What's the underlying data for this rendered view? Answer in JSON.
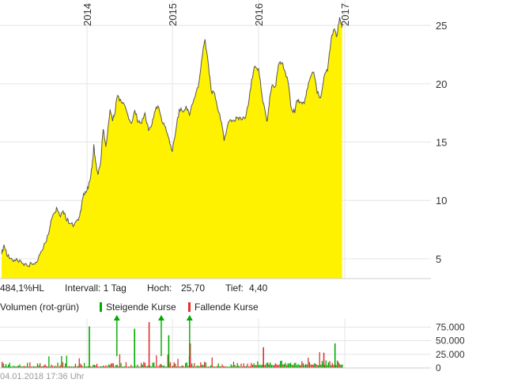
{
  "chart_data": [
    {
      "type": "area",
      "subtype": "price",
      "x_ticks": [
        "2014",
        "2015",
        "2016",
        "2017"
      ],
      "y_ticks": [
        "25",
        "20",
        "15",
        "10",
        "5"
      ],
      "ylim": [
        3.3,
        26.5
      ],
      "grid": true,
      "fill_color": "#fff200",
      "line_color": "#555555",
      "points": [
        [
          2013.0,
          5.4
        ],
        [
          2013.03,
          6.2
        ],
        [
          2013.06,
          5.3
        ],
        [
          2013.1,
          5.0
        ],
        [
          2013.15,
          4.9
        ],
        [
          2013.2,
          4.7
        ],
        [
          2013.25,
          4.6
        ],
        [
          2013.3,
          4.4
        ],
        [
          2013.35,
          4.6
        ],
        [
          2013.4,
          4.7
        ],
        [
          2013.45,
          5.4
        ],
        [
          2013.5,
          6.3
        ],
        [
          2013.55,
          7.1
        ],
        [
          2013.58,
          8.3
        ],
        [
          2013.62,
          8.9
        ],
        [
          2013.65,
          9.3
        ],
        [
          2013.68,
          8.7
        ],
        [
          2013.72,
          9.1
        ],
        [
          2013.75,
          8.5
        ],
        [
          2013.8,
          8.0
        ],
        [
          2013.85,
          7.9
        ],
        [
          2013.9,
          8.3
        ],
        [
          2013.93,
          9.1
        ],
        [
          2013.96,
          10.6
        ],
        [
          2014.0,
          10.9
        ],
        [
          2014.03,
          11.6
        ],
        [
          2014.06,
          12.8
        ],
        [
          2014.08,
          14.8
        ],
        [
          2014.1,
          13.3
        ],
        [
          2014.13,
          12.2
        ],
        [
          2014.16,
          13.3
        ],
        [
          2014.19,
          16.1
        ],
        [
          2014.22,
          14.6
        ],
        [
          2014.24,
          15.7
        ],
        [
          2014.27,
          17.8
        ],
        [
          2014.3,
          16.8
        ],
        [
          2014.32,
          17.3
        ],
        [
          2014.36,
          19.0
        ],
        [
          2014.4,
          18.5
        ],
        [
          2014.44,
          18.2
        ],
        [
          2014.48,
          17.3
        ],
        [
          2014.52,
          16.6
        ],
        [
          2014.56,
          17.7
        ],
        [
          2014.6,
          16.7
        ],
        [
          2014.64,
          16.6
        ],
        [
          2014.68,
          17.5
        ],
        [
          2014.72,
          16.0
        ],
        [
          2014.76,
          16.5
        ],
        [
          2014.8,
          17.7
        ],
        [
          2014.84,
          18.0
        ],
        [
          2014.88,
          16.7
        ],
        [
          2014.92,
          16.3
        ],
        [
          2014.96,
          15.3
        ],
        [
          2015.0,
          14.2
        ],
        [
          2015.04,
          16.0
        ],
        [
          2015.08,
          17.8
        ],
        [
          2015.12,
          17.6
        ],
        [
          2015.16,
          18.1
        ],
        [
          2015.2,
          17.3
        ],
        [
          2015.25,
          18.7
        ],
        [
          2015.3,
          19.7
        ],
        [
          2015.35,
          22.5
        ],
        [
          2015.38,
          23.8
        ],
        [
          2015.42,
          21.5
        ],
        [
          2015.45,
          19.4
        ],
        [
          2015.49,
          19.2
        ],
        [
          2015.53,
          17.7
        ],
        [
          2015.57,
          16.7
        ],
        [
          2015.6,
          15.1
        ],
        [
          2015.64,
          16.4
        ],
        [
          2015.68,
          16.9
        ],
        [
          2015.72,
          16.8
        ],
        [
          2015.76,
          17.1
        ],
        [
          2015.8,
          16.9
        ],
        [
          2015.84,
          17.0
        ],
        [
          2015.88,
          18.1
        ],
        [
          2015.92,
          20.4
        ],
        [
          2015.96,
          21.5
        ],
        [
          2016.0,
          21.3
        ],
        [
          2016.04,
          19.0
        ],
        [
          2016.08,
          17.5
        ],
        [
          2016.1,
          16.8
        ],
        [
          2016.13,
          18.9
        ],
        [
          2016.16,
          19.9
        ],
        [
          2016.2,
          19.8
        ],
        [
          2016.23,
          21.6
        ],
        [
          2016.27,
          21.8
        ],
        [
          2016.31,
          21.0
        ],
        [
          2016.35,
          19.8
        ],
        [
          2016.38,
          17.9
        ],
        [
          2016.42,
          17.5
        ],
        [
          2016.45,
          18.6
        ],
        [
          2016.48,
          18.4
        ],
        [
          2016.53,
          18.3
        ],
        [
          2016.57,
          19.6
        ],
        [
          2016.61,
          20.7
        ],
        [
          2016.64,
          21.0
        ],
        [
          2016.68,
          19.2
        ],
        [
          2016.72,
          18.8
        ],
        [
          2016.76,
          20.6
        ],
        [
          2016.8,
          21.1
        ],
        [
          2016.84,
          23.7
        ],
        [
          2016.88,
          24.7
        ],
        [
          2016.91,
          24.1
        ],
        [
          2016.94,
          25.7
        ],
        [
          2016.97,
          24.8
        ]
      ],
      "data_start": 2013.0,
      "data_end": 2016.97
    },
    {
      "type": "bar",
      "subtype": "volume",
      "title": "Volumen (rot-grün)",
      "y_ticks": [
        "75.000",
        "50.000",
        "25.000",
        "0"
      ],
      "ylim": [
        0,
        90000
      ],
      "grid": true,
      "series": [
        {
          "name": "Steigende Kurse",
          "color": "#00aa00"
        },
        {
          "name": "Fallende Kurse",
          "color": "#e03030"
        }
      ],
      "spikes": [
        {
          "x": 2014.02,
          "value": 76000,
          "series": "Steigende Kurse"
        },
        {
          "x": 2014.55,
          "value": 72000,
          "series": "Steigende Kurse"
        },
        {
          "x": 2014.72,
          "value": 84000,
          "series": "Fallende Kurse"
        },
        {
          "x": 2014.95,
          "value": 60000,
          "series": "Steigende Kurse"
        },
        {
          "x": 2015.2,
          "value": 45000,
          "series": "Fallende Kurse"
        },
        {
          "x": 2016.05,
          "value": 38000,
          "series": "Fallende Kurse"
        },
        {
          "x": 2016.75,
          "value": 28000,
          "series": "Fallende Kurse"
        },
        {
          "x": 2016.88,
          "value": 45000,
          "series": "Steigende Kurse"
        }
      ]
    }
  ],
  "info": {
    "performance": "484,1%HL",
    "interval": "Intervall: 1 Tag",
    "high_label": "Hoch:",
    "high_value": "25,70",
    "low_label": "Tief:",
    "low_value": "4,40"
  },
  "footer": {
    "timestamp": "04.01.2018 17:36 Uhr"
  }
}
